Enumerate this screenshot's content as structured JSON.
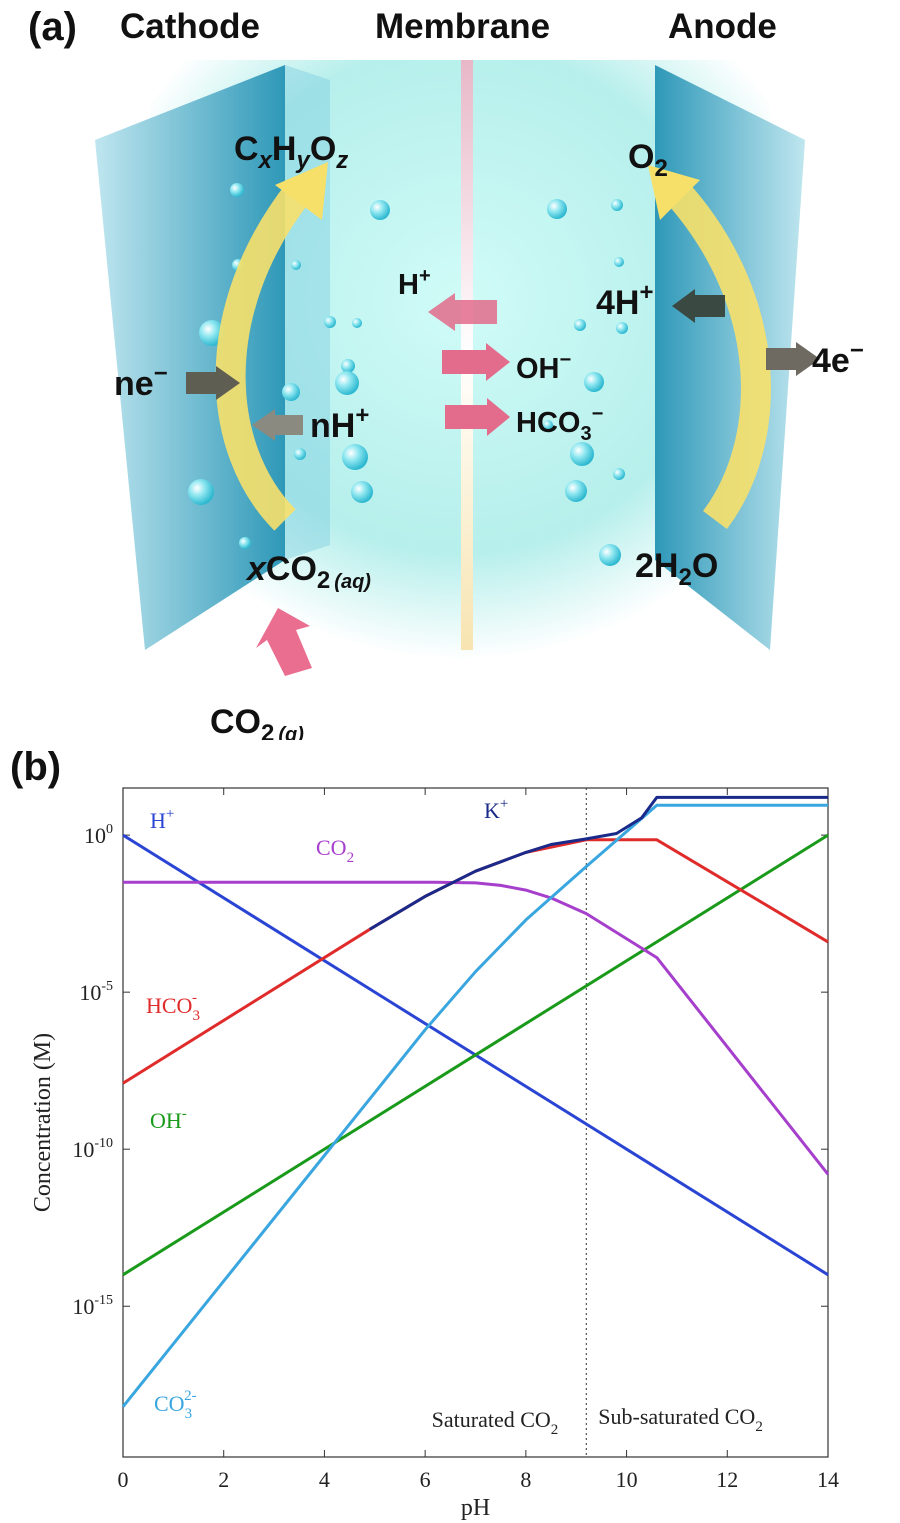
{
  "panel_a": {
    "panel_label": "(a)",
    "headers": {
      "cathode": "Cathode",
      "membrane": "Membrane",
      "anode": "Anode"
    },
    "cathode": {
      "product": {
        "main": "C",
        "s1": "x",
        "m2": "H",
        "s2": "y",
        "m3": "O",
        "s3": "z"
      },
      "electron": {
        "main": "ne",
        "sup": "−"
      },
      "proton": {
        "main": "nH",
        "sup": "+"
      },
      "reactant_aq": {
        "pre": "x",
        "main": "CO",
        "sub": "2",
        "phase": "(aq)"
      },
      "reactant_g": {
        "main": "CO",
        "sub": "2",
        "phase": "(g)"
      }
    },
    "membrane_ions": {
      "h": {
        "main": "H",
        "sup": "+"
      },
      "oh": {
        "main": "OH",
        "sup": "−"
      },
      "hco3": {
        "main": "HCO",
        "sub": "3",
        "sup": "−"
      }
    },
    "anode": {
      "product": {
        "main": "O",
        "sub": "2"
      },
      "proton": {
        "main": "4H",
        "sup": "+"
      },
      "electron": {
        "main": "4e",
        "sup": "−"
      },
      "reactant": {
        "pre": "2H",
        "sub": "2",
        "post": "O"
      }
    },
    "colors": {
      "electrolyte": "#b6f2ef",
      "electrode": "#3fa8c4",
      "reaction_arrow": "#f7e06a",
      "ion_arrow": "#e36b8c",
      "electron_arrow": "#5e5e52"
    }
  },
  "panel_b": {
    "panel_label": "(b)",
    "chart_data": {
      "type": "line",
      "ylog": true,
      "xlim": [
        0,
        14
      ],
      "ylim_log10": [
        -19.8,
        1.5
      ],
      "xlabel": "pH",
      "ylabel": "Concentration (M)",
      "xticks": [
        "0",
        "2",
        "4",
        "6",
        "8",
        "10",
        "12",
        "14"
      ],
      "yticks": [
        {
          "base": "10",
          "exp": "0",
          "log": 0
        },
        {
          "base": "10",
          "exp": "-5",
          "log": -5
        },
        {
          "base": "10",
          "exp": "-10",
          "log": -10
        },
        {
          "base": "10",
          "exp": "-15",
          "log": -15
        }
      ],
      "vline_x": 9.2,
      "regions": {
        "left": {
          "main": "Saturated CO",
          "sub": "2"
        },
        "right": {
          "main": "Sub-saturated CO",
          "sub": "2"
        }
      },
      "series": [
        {
          "name": "H+",
          "label": {
            "main": "H",
            "sup": "+"
          },
          "color": "#2a44d4",
          "x": [
            0,
            14
          ],
          "y": [
            0,
            -14
          ]
        },
        {
          "name": "OH-",
          "label": {
            "main": "OH",
            "sup": "-"
          },
          "color": "#1a9a1a",
          "x": [
            0,
            14
          ],
          "y": [
            -14,
            0
          ]
        },
        {
          "name": "CO2",
          "label": {
            "main": "CO",
            "sub": "2"
          },
          "color": "#a63fcc",
          "x": [
            0,
            6.2,
            7,
            7.5,
            8,
            8.5,
            9.2,
            10.6,
            14
          ],
          "y": [
            -1.5,
            -1.5,
            -1.52,
            -1.6,
            -1.75,
            -2.0,
            -2.5,
            -3.9,
            -10.8
          ]
        },
        {
          "name": "HCO3-",
          "label": {
            "main": "HCO",
            "sub": "3",
            "sup": "-"
          },
          "color": "#e02b2b",
          "x": [
            0,
            4.9,
            6,
            6.5,
            7,
            7.5,
            8,
            9.2,
            10.6,
            14
          ],
          "y": [
            -7.9,
            -3.0,
            -1.95,
            -1.55,
            -1.15,
            -0.85,
            -0.55,
            -0.15,
            -0.15,
            -3.4
          ]
        },
        {
          "name": "CO3 2-",
          "label": {
            "main": "CO",
            "sub": "3",
            "sup": "2-"
          },
          "color": "#3aa6e0",
          "x": [
            0,
            2,
            4,
            5,
            6,
            7,
            8,
            9.2,
            10.6,
            14
          ],
          "y": [
            -18.2,
            -14.2,
            -10.2,
            -8.2,
            -6.2,
            -4.35,
            -2.7,
            -1.0,
            0.95,
            0.95
          ]
        },
        {
          "name": "K+",
          "label": {
            "main": "K",
            "sup": "+"
          },
          "color": "#1a2a8a",
          "x": [
            4.9,
            6,
            6.5,
            7,
            7.5,
            8,
            8.5,
            9.2,
            9.8,
            10.3,
            10.6,
            14
          ],
          "y": [
            -3.0,
            -1.95,
            -1.55,
            -1.15,
            -0.85,
            -0.55,
            -0.3,
            -0.12,
            0.05,
            0.55,
            1.2,
            1.2
          ]
        }
      ]
    }
  }
}
